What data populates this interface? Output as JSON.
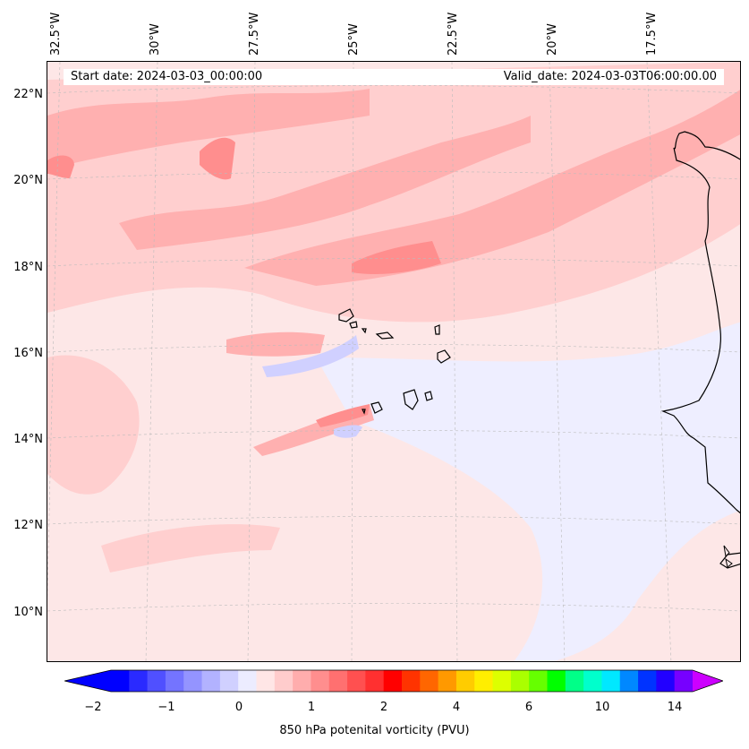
{
  "map": {
    "start_date": "Start date: 2024-03-03_00:00:00",
    "valid_date": "Valid_date: 2024-03-03T06:00:00.00",
    "lon_labels": [
      "32.5°W",
      "30°W",
      "27.5°W",
      "25°W",
      "22.5°W",
      "20°W",
      "17.5°W"
    ],
    "lat_labels": [
      "22°N",
      "20°N",
      "18°N",
      "16°N",
      "14°N",
      "12°N",
      "10°N"
    ],
    "colorbar_ticks": [
      "−2",
      "−1",
      "0",
      "1",
      "2",
      "4",
      "6",
      "10",
      "14"
    ],
    "colorbar_label": "850 hPa potenital vorticity (PVU)",
    "colorbar_colors": [
      "#0000ff",
      "#2a2aff",
      "#5050ff",
      "#7474ff",
      "#9494ff",
      "#b2b2ff",
      "#d0d0ff",
      "#ececff",
      "#ffe6e6",
      "#ffcccc",
      "#ffadad",
      "#ff8e8e",
      "#ff7070",
      "#ff5050",
      "#ff3030",
      "#ff0000",
      "#ff3300",
      "#ff6600",
      "#ff9900",
      "#ffcc00",
      "#ffee00",
      "#ddff00",
      "#aaff00",
      "#66ff00",
      "#00ff00",
      "#00ff88",
      "#00ffcc",
      "#00e8ff",
      "#0088ff",
      "#0033ff",
      "#2200ff",
      "#7700ff"
    ],
    "extend_min_color": "#0000ff",
    "extend_max_color": "#cc00ff"
  }
}
